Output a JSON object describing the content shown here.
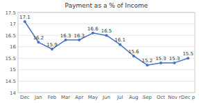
{
  "chart_data": {
    "type": "line",
    "title": "Payment as a % of Income",
    "categories": [
      "Dec",
      "Jan",
      "Feb",
      "Mar",
      "Apr",
      "May",
      "Jun",
      "Jul",
      "Aug",
      "Sep",
      "Oct",
      "Nov r",
      "Dec p"
    ],
    "values": [
      17.1,
      16.2,
      15.9,
      16.3,
      16.3,
      16.6,
      16.5,
      16.1,
      15.6,
      15.2,
      15.3,
      15.3,
      15.5
    ],
    "color": "#4472C4",
    "marker": "circle",
    "ylim": [
      14.0,
      17.5
    ],
    "yticks": [
      14.0,
      14.5,
      15.0,
      15.5,
      16.0,
      16.5,
      17.0,
      17.5
    ],
    "grid": true,
    "data_labels": true
  }
}
